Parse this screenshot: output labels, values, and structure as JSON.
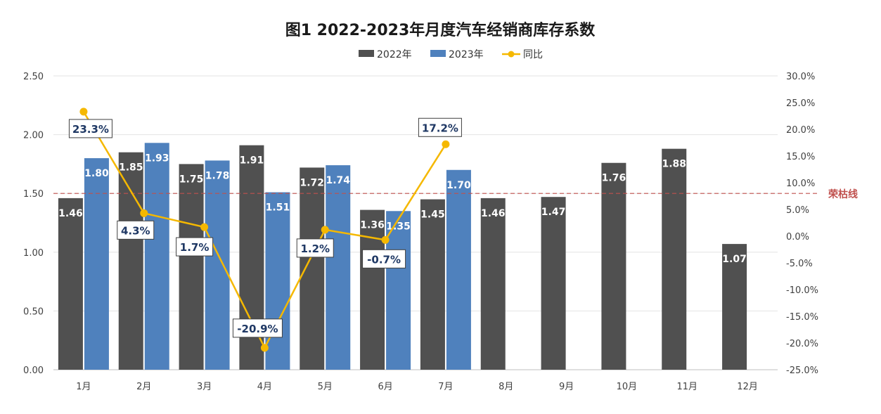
{
  "chart_data": {
    "type": "bar",
    "title": "图1  2022-2023年月度汽车经销商库存系数",
    "categories": [
      "1月",
      "2月",
      "3月",
      "4月",
      "5月",
      "6月",
      "7月",
      "8月",
      "9月",
      "10月",
      "11月",
      "12月"
    ],
    "series": [
      {
        "name": "2022年",
        "type": "bar",
        "axis": "left",
        "color": "#505050",
        "values": [
          1.46,
          1.85,
          1.75,
          1.91,
          1.72,
          1.36,
          1.45,
          1.46,
          1.47,
          1.76,
          1.88,
          1.07
        ],
        "labels": [
          "1.46",
          "1.85",
          "1.75",
          "1.91",
          "1.72",
          "1.36",
          "1.45",
          "1.46",
          "1.47",
          "1.76",
          "1.88",
          "1.07"
        ]
      },
      {
        "name": "2023年",
        "type": "bar",
        "axis": "left",
        "color": "#4f81bd",
        "values": [
          1.8,
          1.93,
          1.78,
          1.51,
          1.74,
          1.35,
          1.7,
          null,
          null,
          null,
          null,
          null
        ],
        "labels": [
          "1.80",
          "1.93",
          "1.78",
          "1.51",
          "1.74",
          "1.35",
          "1.70",
          "",
          "",
          "",
          "",
          ""
        ]
      },
      {
        "name": "同比",
        "type": "line",
        "axis": "right",
        "color": "#f5b800",
        "values": [
          23.3,
          4.3,
          1.7,
          -20.9,
          1.2,
          -0.7,
          17.2,
          null,
          null,
          null,
          null,
          null
        ],
        "labels": [
          "23.3%",
          "4.3%",
          "1.7%",
          "-20.9%",
          "1.2%",
          "-0.7%",
          "17.2%",
          "",
          "",
          "",
          "",
          ""
        ]
      }
    ],
    "y_left": {
      "min": 0,
      "max": 2.5,
      "step": 0.5,
      "ticks": [
        "0.00",
        "0.50",
        "1.00",
        "1.50",
        "2.00",
        "2.50"
      ]
    },
    "y_right": {
      "min": -25,
      "max": 30,
      "step": 5,
      "ticks": [
        "-25.0%",
        "-20.0%",
        "-15.0%",
        "-10.0%",
        "-5.0%",
        "0.0%",
        "5.0%",
        "10.0%",
        "15.0%",
        "20.0%",
        "25.0%",
        "30.0%"
      ]
    },
    "reference_line": {
      "value": 1.5,
      "axis": "left",
      "label": "荣枯线",
      "color": "#c0504d",
      "style": "dashed"
    },
    "grid": true,
    "legend_position": "top"
  }
}
